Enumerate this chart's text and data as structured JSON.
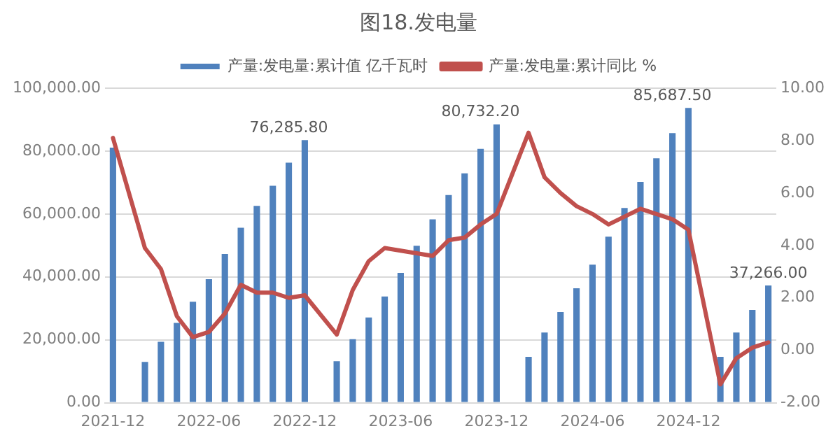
{
  "chart_data": {
    "type": "bar",
    "title": "图18.发电量",
    "categories": [
      "2021-12",
      null,
      null,
      null,
      null,
      null,
      "2022-06",
      null,
      null,
      null,
      null,
      null,
      "2022-12",
      null,
      null,
      null,
      null,
      null,
      "2023-06",
      null,
      null,
      null,
      null,
      null,
      "2023-12",
      null,
      null,
      null,
      null,
      null,
      "2024-06",
      null,
      null,
      null,
      null,
      null,
      "2024-12",
      null,
      null,
      null,
      null,
      null
    ],
    "series": [
      {
        "name": "产量:发电量:累计值 亿千瓦时",
        "color": "#4f81bd",
        "values": [
          81100,
          null,
          13000,
          19400,
          25400,
          32100,
          39300,
          47300,
          55600,
          62600,
          69000,
          76285.8,
          83500,
          null,
          13200,
          20200,
          27100,
          33800,
          41300,
          49900,
          58300,
          66000,
          72900,
          80732.2,
          88500,
          null,
          14600,
          22300,
          28800,
          36400,
          43900,
          52800,
          61900,
          70200,
          77700,
          85687.5,
          93700,
          null,
          14600,
          22300,
          29500,
          37266
        ],
        "value_labels": [
          null,
          null,
          null,
          null,
          null,
          null,
          null,
          null,
          null,
          null,
          null,
          "76,285.80",
          null,
          null,
          null,
          null,
          null,
          null,
          null,
          null,
          null,
          null,
          null,
          "80,732.20",
          null,
          null,
          null,
          null,
          null,
          null,
          null,
          null,
          null,
          null,
          null,
          "85,687.50",
          null,
          null,
          null,
          null,
          null,
          "37,266.00"
        ]
      },
      {
        "name": "产量:发电量:累计同比 %",
        "type": "line",
        "axis": "y2",
        "color": "#c0504d",
        "values": [
          8.1,
          null,
          3.9,
          3.1,
          1.3,
          0.5,
          0.7,
          1.4,
          2.5,
          2.2,
          2.2,
          2.0,
          2.1,
          null,
          0.6,
          2.3,
          3.4,
          3.9,
          3.8,
          3.7,
          3.6,
          4.2,
          4.3,
          4.8,
          5.2,
          null,
          8.3,
          6.6,
          6.0,
          5.5,
          5.2,
          4.8,
          5.1,
          5.4,
          5.2,
          5.0,
          4.6,
          null,
          -1.3,
          -0.3,
          0.1,
          0.3
        ]
      }
    ],
    "ylim": [
      0,
      100000
    ],
    "yticks": [
      {
        "value": 0,
        "label": "0.00"
      },
      {
        "value": 20000,
        "label": "20,000.00"
      },
      {
        "value": 40000,
        "label": "40,000.00"
      },
      {
        "value": 60000,
        "label": "60,000.00"
      },
      {
        "value": 80000,
        "label": "80,000.00"
      },
      {
        "value": 100000,
        "label": "100,000.00"
      }
    ],
    "y2lim": [
      -2,
      10
    ],
    "y2ticks": [
      {
        "value": -2,
        "label": "-2.00"
      },
      {
        "value": 0,
        "label": "0.00"
      },
      {
        "value": 2,
        "label": "2.00"
      },
      {
        "value": 4,
        "label": "4.00"
      },
      {
        "value": 6,
        "label": "6.00"
      },
      {
        "value": 8,
        "label": "8.00"
      },
      {
        "value": 10,
        "label": "10.00"
      }
    ],
    "grid": "y",
    "legend": "top",
    "marker": "none"
  }
}
